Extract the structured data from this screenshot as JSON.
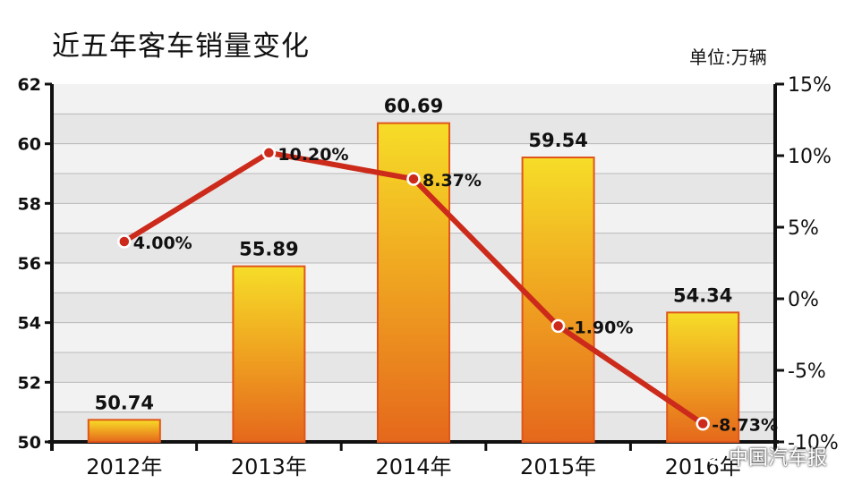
{
  "title": "近五年客车销量变化",
  "unit": "单位:万辆",
  "watermark": "中国汽车报",
  "chart_data": {
    "type": "bar",
    "categories": [
      "2012年",
      "2013年",
      "2014年",
      "2015年",
      "2016年"
    ],
    "series": [
      {
        "type": "bar",
        "values": [
          50.74,
          55.89,
          60.69,
          59.54,
          54.34
        ],
        "labels": [
          "50.74",
          "55.89",
          "60.69",
          "59.54",
          "54.34"
        ],
        "axis": "left",
        "color": "#f0a020"
      },
      {
        "type": "line",
        "values": [
          4.0,
          10.2,
          8.37,
          -1.9,
          -8.73
        ],
        "labels": [
          "4.00%",
          "10.20%",
          "8.37%",
          "-1.90%",
          "-8.73%"
        ],
        "axis": "right",
        "color": "#cc2a1a"
      }
    ],
    "y_left": {
      "min": 50,
      "max": 62,
      "ticks": [
        "50",
        "52",
        "54",
        "56",
        "58",
        "60",
        "62"
      ]
    },
    "y_right": {
      "min": -10,
      "max": 15,
      "ticks": [
        "-10%",
        "-5%",
        "0%",
        "5%",
        "10%",
        "15%"
      ]
    },
    "grid": true,
    "plot_background": "#e6e6e6"
  }
}
